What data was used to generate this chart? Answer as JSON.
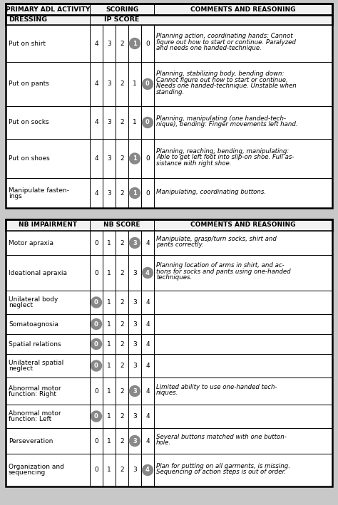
{
  "bg_color": "#c8c8c8",
  "border_color": "#000000",
  "circle_color": "#888888",
  "table1": {
    "col_header": [
      "PRIMARY ADL ACTIVITY",
      "SCORING",
      "COMMENTS AND REASONING"
    ],
    "row2_header": [
      "DRESSING",
      "IP SCORE"
    ],
    "rows": [
      {
        "activity": "Put on shirt",
        "scores": [
          "4",
          "3",
          "2",
          "1",
          "0"
        ],
        "circled": "1",
        "comment": "Planning action, coordinating hands: Cannot\nfigure out how to start or continue. Paralyzed\nand needs one handed-technique."
      },
      {
        "activity": "Put on pants",
        "scores": [
          "4",
          "3",
          "2",
          "1",
          "0"
        ],
        "circled": "0",
        "comment": "Planning, stabilizing body, bending down:\nCannot figure out how to start or continue.\nNeeds one handed-technique. Unstable when\nstanding."
      },
      {
        "activity": "Put on socks",
        "scores": [
          "4",
          "3",
          "2",
          "1",
          "0"
        ],
        "circled": "0",
        "comment": "Planning, manipulating (one handed-tech-\nnique), bending: Finger movements left hand."
      },
      {
        "activity": "Put on shoes",
        "scores": [
          "4",
          "3",
          "2",
          "1",
          "0"
        ],
        "circled": "1",
        "comment": "Planning, reaching, bending, manipulating:\nAble to get left foot into slip-on shoe. Full as-\nsistance with right shoe."
      },
      {
        "activity": "Manipulate fasten-\nings",
        "scores": [
          "4",
          "3",
          "2",
          "1",
          "0"
        ],
        "circled": "1",
        "comment": "Manipulating, coordinating buttons."
      }
    ]
  },
  "table2": {
    "col_header": [
      "NB IMPAIRMENT",
      "NB SCORE",
      "COMMENTS AND REASONING"
    ],
    "rows": [
      {
        "activity": "Motor apraxia",
        "scores": [
          "0",
          "1",
          "2",
          "3",
          "4"
        ],
        "circled": "3",
        "comment": "Manipulate, grasp/turn socks, shirt and\npants correctly."
      },
      {
        "activity": "Ideational apraxia",
        "scores": [
          "0",
          "1",
          "2",
          "3",
          "4"
        ],
        "circled": "4",
        "comment": "Planning location of arms in shirt, and ac-\ntions for socks and pants using one-handed\ntechniques."
      },
      {
        "activity": "Unilateral body\nneglect",
        "scores": [
          "0",
          "1",
          "2",
          "3",
          "4"
        ],
        "circled": "0",
        "comment": ""
      },
      {
        "activity": "Somatoagnosia",
        "scores": [
          "0",
          "1",
          "2",
          "3",
          "4"
        ],
        "circled": "0",
        "comment": ""
      },
      {
        "activity": "Spatial relations",
        "scores": [
          "0",
          "1",
          "2",
          "3",
          "4"
        ],
        "circled": "0",
        "comment": ""
      },
      {
        "activity": "Unilateral spatial\nneglect",
        "scores": [
          "0",
          "1",
          "2",
          "3",
          "4"
        ],
        "circled": "0",
        "comment": ""
      },
      {
        "activity": "Abnormal motor\nfunction: Right",
        "scores": [
          "0",
          "1",
          "2",
          "3",
          "4"
        ],
        "circled": "3",
        "comment": "Limited ability to use one-handed tech-\nniques."
      },
      {
        "activity": "Abnormal motor\nfunction: Left",
        "scores": [
          "0",
          "1",
          "2",
          "3",
          "4"
        ],
        "circled": "0",
        "comment": ""
      },
      {
        "activity": "Perseveration",
        "scores": [
          "0",
          "1",
          "2",
          "3",
          "4"
        ],
        "circled": "3",
        "comment": "Several buttons matched with one button-\nhole."
      },
      {
        "activity": "Organization and\nsequencing",
        "scores": [
          "0",
          "1",
          "2",
          "3",
          "4"
        ],
        "circled": "4",
        "comment": "Plan for putting on all garments, is missing.\nSequencing of action steps is out of order."
      }
    ]
  }
}
